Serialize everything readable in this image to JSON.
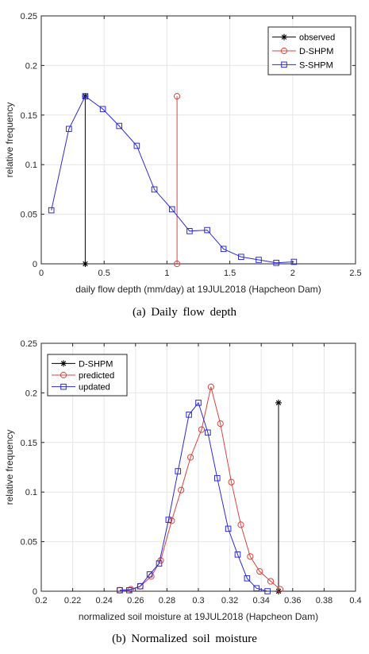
{
  "chart_data": [
    {
      "type": "line",
      "xlabel": "daily flow depth (mm/day) at 19JUL2018 (Hapcheon Dam)",
      "ylabel": "relative frequency",
      "xlim": [
        0,
        2.5
      ],
      "ylim": [
        0,
        0.25
      ],
      "xticks": [
        "0",
        "0.5",
        "1",
        "1.5",
        "2",
        "2.5"
      ],
      "yticks": [
        "0",
        "0.05",
        "0.1",
        "0.15",
        "0.2",
        "0.25"
      ],
      "grid": true,
      "legend_position": "top-right",
      "series": [
        {
          "name": "observed",
          "color": "#000000",
          "marker": "asterisk",
          "x": [
            0.35,
            0.35
          ],
          "y": [
            0,
            0.169
          ]
        },
        {
          "name": "D-SHPM",
          "color": "#d9443f",
          "marker": "circle",
          "x": [
            1.08,
            1.08
          ],
          "y": [
            0,
            0.169
          ]
        },
        {
          "name": "S-SHPM",
          "color": "#2b2bd6",
          "marker": "square",
          "x": [
            0.08,
            0.22,
            0.35,
            0.49,
            0.62,
            0.76,
            0.9,
            1.04,
            1.18,
            1.32,
            1.45,
            1.59,
            1.73,
            1.87,
            2.01
          ],
          "y": [
            0.054,
            0.136,
            0.169,
            0.156,
            0.139,
            0.119,
            0.075,
            0.055,
            0.033,
            0.034,
            0.015,
            0.007,
            0.004,
            0.001,
            0.002
          ]
        }
      ]
    },
    {
      "type": "line",
      "xlabel": "normalized soil moisture at 19JUL2018 (Hapcheon Dam)",
      "ylabel": "relative frequency",
      "xlim": [
        0.2,
        0.4
      ],
      "ylim": [
        0,
        0.25
      ],
      "xticks": [
        "0.2",
        "0.22",
        "0.24",
        "0.26",
        "0.28",
        "0.3",
        "0.32",
        "0.34",
        "0.36",
        "0.38",
        "0.4"
      ],
      "yticks": [
        "0",
        "0.05",
        "0.1",
        "0.15",
        "0.2",
        "0.25"
      ],
      "grid": true,
      "legend_position": "top-left",
      "series": [
        {
          "name": "D-SHPM",
          "color": "#000000",
          "marker": "asterisk",
          "x": [
            0.351,
            0.351
          ],
          "y": [
            0,
            0.19
          ]
        },
        {
          "name": "predicted",
          "color": "#d9443f",
          "marker": "circle",
          "x": [
            0.25,
            0.257,
            0.263,
            0.27,
            0.276,
            0.283,
            0.289,
            0.295,
            0.302,
            0.308,
            0.314,
            0.321,
            0.327,
            0.333,
            0.339,
            0.346,
            0.352
          ],
          "y": [
            0.001,
            0.002,
            0.005,
            0.015,
            0.031,
            0.071,
            0.102,
            0.135,
            0.163,
            0.206,
            0.169,
            0.11,
            0.067,
            0.035,
            0.02,
            0.01,
            0.002
          ]
        },
        {
          "name": "updated",
          "color": "#2b2bd6",
          "marker": "square",
          "x": [
            0.25,
            0.256,
            0.263,
            0.269,
            0.275,
            0.281,
            0.287,
            0.294,
            0.3,
            0.306,
            0.312,
            0.319,
            0.325,
            0.331,
            0.337,
            0.344
          ],
          "y": [
            0.001,
            0.001,
            0.005,
            0.017,
            0.028,
            0.072,
            0.121,
            0.178,
            0.19,
            0.16,
            0.114,
            0.063,
            0.037,
            0.013,
            0.003,
            0.0
          ]
        }
      ]
    }
  ],
  "captions": [
    "(a)  Daily  flow  depth",
    "(b)  Normalized  soil  moisture"
  ]
}
